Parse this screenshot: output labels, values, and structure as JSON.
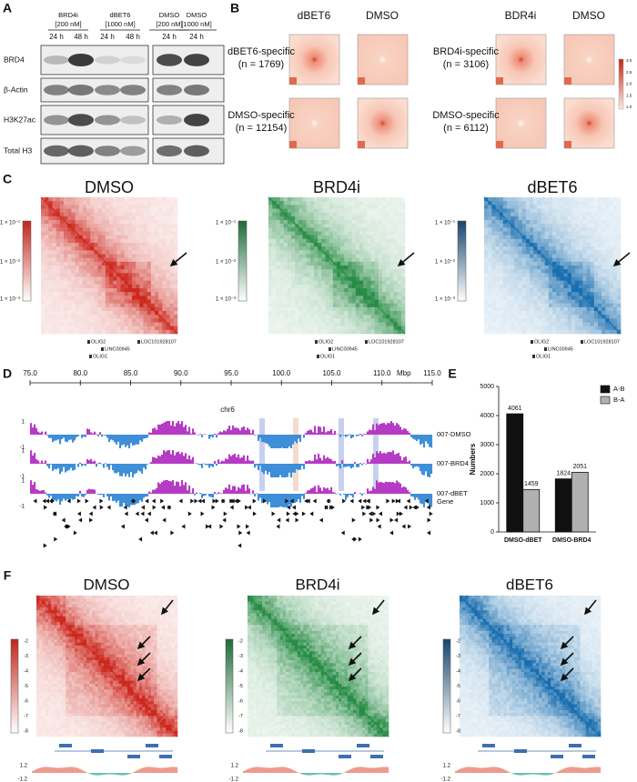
{
  "panel_a": {
    "letter": "A",
    "groups": [
      {
        "name": "BRD4i",
        "dose": "[200 nM]"
      },
      {
        "name": "dBET6",
        "dose": "[1000 nM]"
      },
      {
        "name": "DMSO",
        "dose": "[200 nM]"
      },
      {
        "name": "DMSO",
        "dose": "[1000 nM]"
      }
    ],
    "lanes": [
      "24 h",
      "48 h",
      "24 h",
      "48 h",
      "24 h",
      "24 h"
    ],
    "rows": [
      "BRD4",
      "β-Actin",
      "H3K27ac",
      "Total H3"
    ]
  },
  "panel_b": {
    "letter": "B",
    "columns": [
      "dBET6",
      "DMSO",
      "BDR4i",
      "DMSO"
    ],
    "sets": [
      {
        "label": "dBET6-specific",
        "n": "(n = 1769)"
      },
      {
        "label": "DMSO-specific",
        "n": "(n = 12154)"
      },
      {
        "label": "BRD4i-specific",
        "n": "(n = 3106)"
      },
      {
        "label": "DMSO-specific",
        "n": "(n = 6112)"
      }
    ],
    "colorbar": [
      "3.0",
      "2.5",
      "2.0",
      "1.5",
      "1.0"
    ]
  },
  "panel_c": {
    "letter": "C",
    "maps": [
      "DMSO",
      "BRD4i",
      "dBET6"
    ],
    "colorbar": [
      "1 × 10⁻¹",
      "1 × 10⁻²",
      "1 × 10⁻³"
    ],
    "genes": [
      "OLIG2",
      "LINC00945",
      "OLIG1",
      "LOC101928107"
    ]
  },
  "panel_d": {
    "letter": "D",
    "chromosome": "chr6",
    "unit": "Mbp",
    "xlim": [
      75,
      115
    ],
    "xticks": [
      {
        "value": 75,
        "label": "75.0"
      },
      {
        "value": 80,
        "label": "80.0"
      },
      {
        "value": 85,
        "label": "85.0"
      },
      {
        "value": 90,
        "label": "90.0"
      },
      {
        "value": 95,
        "label": "95.0"
      },
      {
        "value": 100,
        "label": "100.0"
      },
      {
        "value": 105,
        "label": "105.0"
      },
      {
        "value": 110,
        "label": "110.0"
      },
      {
        "value": 115,
        "label": "115.0"
      }
    ],
    "tracks": [
      "007-DMSO",
      "007-BRD4",
      "007-dBET"
    ],
    "track_ticks": [
      "1",
      "-1"
    ],
    "gene_track": "Gene"
  },
  "panel_f": {
    "letter": "F",
    "maps": [
      "DMSO",
      "BRD4i",
      "dBET6"
    ],
    "colorbar": [
      "-2",
      "-3",
      "-4",
      "-5",
      "-6",
      "-7",
      "-8"
    ],
    "signal_ticks": [
      "1.2",
      "-1.2"
    ]
  },
  "chart_data": {
    "type": "bar",
    "letter": "E",
    "ylabel": "Numbers",
    "categories": [
      "DMSO-dBET",
      "DMSO-BRD4"
    ],
    "series": [
      {
        "name": "A-B",
        "color": "#111111",
        "values": [
          4061,
          1824
        ]
      },
      {
        "name": "B-A",
        "color": "#b0b0b0",
        "values": [
          1459,
          2051
        ]
      }
    ],
    "ylim": [
      0,
      5000
    ],
    "yticks": [
      0,
      1000,
      2000,
      3000,
      4000,
      5000
    ],
    "legend": "upper right"
  }
}
